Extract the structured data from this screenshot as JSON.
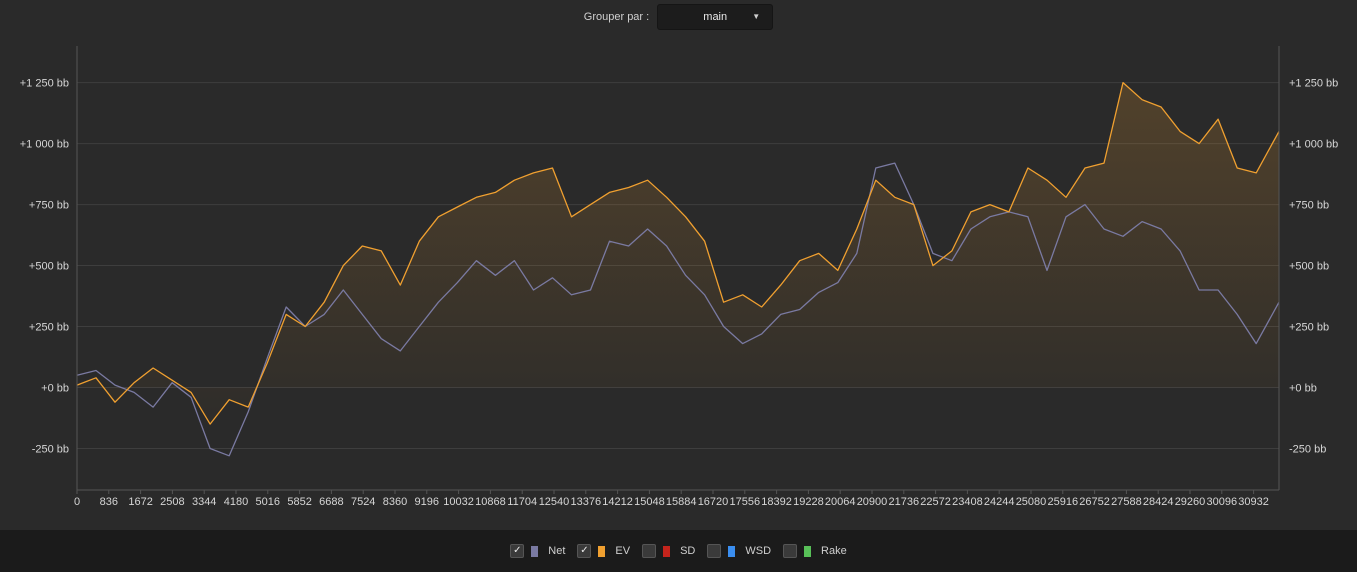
{
  "toolbar": {
    "group_label": "Grouper par :",
    "group_value": "main"
  },
  "legend": [
    {
      "label": "Net",
      "checked": true,
      "color": "#7a7aa2"
    },
    {
      "label": "EV",
      "checked": true,
      "color": "#f0a030"
    },
    {
      "label": "SD",
      "checked": false,
      "color": "#c4241c"
    },
    {
      "label": "WSD",
      "checked": false,
      "color": "#3a8ef0"
    },
    {
      "label": "Rake",
      "checked": false,
      "color": "#58c058"
    }
  ],
  "chart_data": {
    "type": "line",
    "title": "",
    "xlabel": "",
    "ylabel": "",
    "xlim": [
      0,
      31600
    ],
    "ylim": [
      -420,
      1400
    ],
    "x_ticks": [
      0,
      836,
      1672,
      2508,
      3344,
      4180,
      5016,
      5852,
      6688,
      7524,
      8360,
      9196,
      10032,
      10868,
      11704,
      12540,
      13376,
      14212,
      15048,
      15884,
      16720,
      17556,
      18392,
      19228,
      20064,
      20900,
      21736,
      22572,
      23408,
      24244,
      25080,
      25916,
      26752,
      27588,
      28424,
      29260,
      30096,
      30932
    ],
    "y_ticks": [
      -250,
      0,
      250,
      500,
      750,
      1000,
      1250
    ],
    "y_tick_labels": [
      "-250 bb",
      "+0 bb",
      "+250 bb",
      "+500 bb",
      "+750 bb",
      "+1 000 bb",
      "+1 250 bb"
    ],
    "grid": true,
    "x": [
      0,
      500,
      1000,
      1500,
      2000,
      2500,
      3000,
      3500,
      4000,
      4500,
      5000,
      5500,
      6000,
      6500,
      7000,
      7500,
      8000,
      8500,
      9000,
      9500,
      10000,
      10500,
      11000,
      11500,
      12000,
      12500,
      13000,
      13500,
      14000,
      14500,
      15000,
      15500,
      16000,
      16500,
      17000,
      17500,
      18000,
      18500,
      19000,
      19500,
      20000,
      20500,
      21000,
      21500,
      22000,
      22500,
      23000,
      23500,
      24000,
      24500,
      25000,
      25500,
      26000,
      26500,
      27000,
      27500,
      28000,
      28500,
      29000,
      29500,
      30000,
      30500,
      31000,
      31600
    ],
    "series": [
      {
        "name": "EV",
        "color": "#f0a030",
        "values": [
          10,
          40,
          -60,
          20,
          80,
          30,
          -20,
          -150,
          -50,
          -80,
          100,
          300,
          250,
          350,
          500,
          580,
          560,
          420,
          600,
          700,
          740,
          780,
          800,
          850,
          880,
          900,
          700,
          750,
          800,
          820,
          850,
          780,
          700,
          600,
          350,
          380,
          330,
          420,
          520,
          550,
          480,
          650,
          850,
          780,
          750,
          500,
          560,
          720,
          750,
          720,
          900,
          850,
          780,
          900,
          920,
          1250,
          1180,
          1150,
          1050,
          1000,
          1100,
          900,
          880,
          1050
        ]
      },
      {
        "name": "Net",
        "color": "#7a7aa2",
        "values": [
          50,
          70,
          10,
          -20,
          -80,
          20,
          -40,
          -250,
          -280,
          -100,
          120,
          330,
          250,
          300,
          400,
          300,
          200,
          150,
          250,
          350,
          430,
          520,
          460,
          520,
          400,
          450,
          380,
          400,
          600,
          580,
          650,
          580,
          460,
          380,
          250,
          180,
          220,
          300,
          320,
          390,
          430,
          550,
          900,
          920,
          750,
          550,
          520,
          650,
          700,
          720,
          700,
          480,
          700,
          750,
          650,
          620,
          680,
          650,
          560,
          400,
          400,
          300,
          180,
          350
        ]
      }
    ]
  }
}
